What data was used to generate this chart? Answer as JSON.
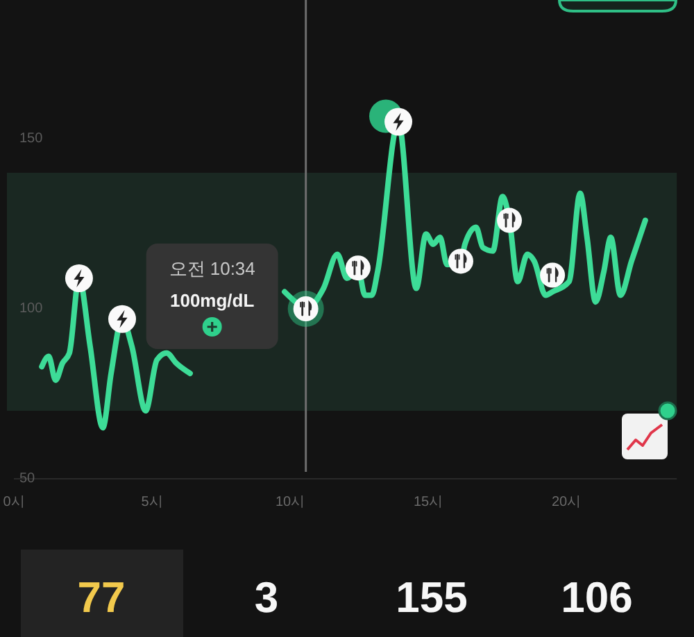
{
  "chart_data": {
    "type": "line",
    "x": [
      1.01,
      1.26,
      1.51,
      1.76,
      2.01,
      2.36,
      2.76,
      3.22,
      3.52,
      3.92,
      4.27,
      4.77,
      5.18,
      5.53,
      5.88,
      6.38,
      8.0,
      9.8,
      10.2,
      10.57,
      11.21,
      11.71,
      12.06,
      12.46,
      12.71,
      12.96,
      13.17,
      13.92,
      14.57,
      14.92,
      15.18,
      15.43,
      15.68,
      16.18,
      16.33,
      16.73,
      16.98,
      17.34,
      17.69,
      17.94,
      18.24,
      18.59,
      18.84,
      19.25,
      19.5,
      20.1,
      20.5,
      20.75,
      21.06,
      21.36,
      21.61,
      21.96,
      22.36,
      22.86
    ],
    "values": [
      83,
      86,
      79,
      84,
      87,
      109,
      89,
      65,
      81,
      97,
      89,
      70,
      85,
      87,
      84,
      81,
      null,
      105,
      102,
      100,
      106,
      116,
      109,
      112,
      104,
      104,
      111,
      155,
      106,
      122,
      119,
      121,
      113,
      114,
      119,
      124,
      118,
      117,
      133,
      126,
      108,
      116,
      114,
      104,
      105,
      108,
      134,
      121,
      102,
      111,
      121,
      104,
      114,
      126
    ],
    "color": "#3ddc97",
    "xlim": [
      0,
      24
    ],
    "ylim": [
      50,
      190
    ],
    "xticks": [
      {
        "value": 0,
        "label": "0시"
      },
      {
        "value": 5,
        "label": "5시"
      },
      {
        "value": 10,
        "label": "10시"
      },
      {
        "value": 15,
        "label": "15시"
      },
      {
        "value": 20,
        "label": "20시"
      }
    ],
    "yticks": [
      50,
      100,
      150
    ],
    "bands": [
      {
        "axis": "y",
        "from": 70,
        "to": 140,
        "color": "#1a2822"
      }
    ],
    "ref_lines": [
      {
        "axis": "x",
        "value": 10.57,
        "color": "#6e6e6e"
      }
    ],
    "annotations": [
      "오전 10:34",
      "100mg/dL",
      "77",
      "3",
      "155",
      "106"
    ]
  }
}
